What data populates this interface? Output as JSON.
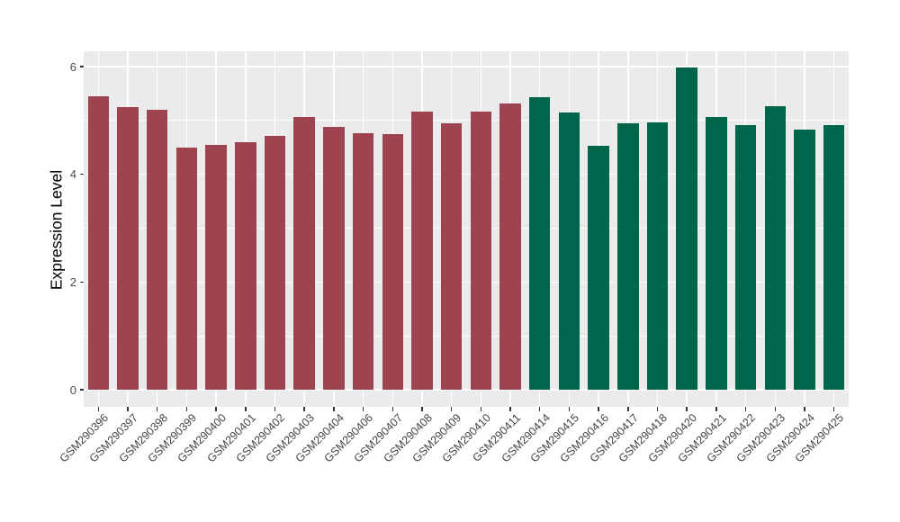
{
  "chart_data": {
    "type": "bar",
    "title": "",
    "xlabel": "",
    "ylabel": "Expression Level",
    "categories": [
      "GSM290396",
      "GSM290397",
      "GSM290398",
      "GSM290399",
      "GSM290400",
      "GSM290401",
      "GSM290402",
      "GSM290403",
      "GSM290404",
      "GSM290406",
      "GSM290407",
      "GSM290408",
      "GSM290409",
      "GSM290410",
      "GSM290411",
      "GSM290414",
      "GSM290415",
      "GSM290416",
      "GSM290417",
      "GSM290418",
      "GSM290420",
      "GSM290421",
      "GSM290422",
      "GSM290423",
      "GSM290424",
      "GSM290425"
    ],
    "values": [
      5.45,
      5.25,
      5.2,
      4.49,
      4.55,
      4.6,
      4.71,
      5.07,
      4.88,
      4.77,
      4.74,
      5.16,
      4.95,
      5.17,
      5.31,
      5.43,
      5.15,
      4.53,
      4.94,
      4.96,
      5.98,
      5.06,
      4.92,
      5.27,
      4.83,
      4.91
    ],
    "groups": [
      1,
      1,
      1,
      1,
      1,
      1,
      1,
      1,
      1,
      1,
      1,
      1,
      1,
      1,
      1,
      2,
      2,
      2,
      2,
      2,
      2,
      2,
      2,
      2,
      2,
      2
    ],
    "group_colors": {
      "1": "#9E4450",
      "2": "#00664B"
    },
    "ylim": [
      0,
      6.28
    ],
    "yticks_major": [
      0,
      2,
      4,
      6
    ],
    "yticks_minor": [
      1,
      3,
      5
    ],
    "grid": "on",
    "legend": "none",
    "x_tick_rotation": 45,
    "panel_bg": "#EBEBEB",
    "grid_color": "#FFFFFF",
    "axis_text_color": "#4D4D4D",
    "tick_mark_color": "#333333"
  }
}
